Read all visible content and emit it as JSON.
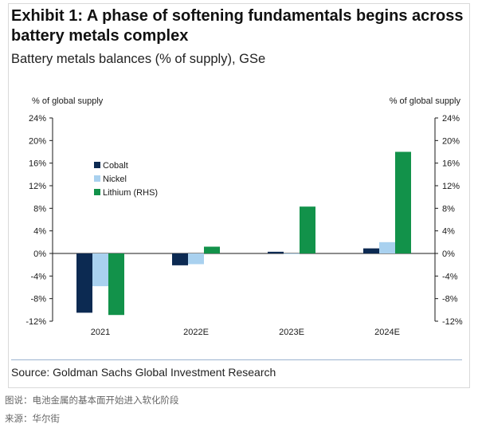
{
  "exhibit": {
    "title": "Exhibit 1: A phase of softening fundamentals begins across battery metals complex",
    "subtitle": "Battery metals balances (% of supply), GSe",
    "source": "Source: Goldman Sachs Global Investment Research"
  },
  "caption": {
    "line1": "图说：电池金属的基本面开始进入软化阶段",
    "line2": "来源：华尔街"
  },
  "colors": {
    "cobalt": "#0c2a52",
    "nickel": "#a9d1ef",
    "lithium": "#12924a",
    "axis": "#1a1a1a"
  },
  "chart_data": {
    "type": "bar",
    "title": "Battery metals balances (% of supply), GSe",
    "categories": [
      "2021",
      "2022E",
      "2023E",
      "2024E"
    ],
    "ylabel_left": "% of global supply",
    "ylabel_right": "% of global supply",
    "ylim": [
      -12,
      24
    ],
    "yticks": [
      "24%",
      "20%",
      "16%",
      "12%",
      "8%",
      "4%",
      "0%",
      "-4%",
      "-8%",
      "-12%"
    ],
    "ytick_values": [
      24,
      20,
      16,
      12,
      8,
      4,
      0,
      -4,
      -8,
      -12
    ],
    "grid": false,
    "legend_position": "left-middle",
    "series": [
      {
        "name": "Cobalt",
        "values": [
          -10.5,
          -2.1,
          0.3,
          0.9
        ],
        "color": "#0c2a52",
        "axis": "left"
      },
      {
        "name": "Nickel",
        "values": [
          -5.8,
          -1.9,
          0.0,
          2.0
        ],
        "color": "#a9d1ef",
        "axis": "left"
      },
      {
        "name": "Lithium (RHS)",
        "values": [
          -10.9,
          1.2,
          8.3,
          18.0
        ],
        "color": "#12924a",
        "axis": "right"
      }
    ]
  }
}
